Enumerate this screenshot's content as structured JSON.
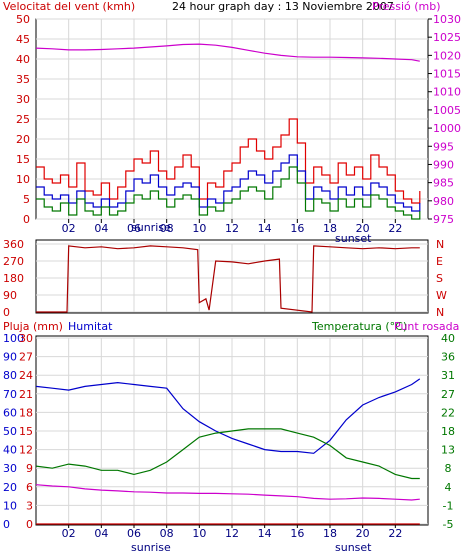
{
  "header": {
    "wind_title": "Velocitat del vent (kmh)",
    "main_title": "24 hour graph day : 13 Noviembre 2007",
    "pressure_title": "Pressió (mb)"
  },
  "bottom_header": {
    "rain_title": "Pluja (mm)",
    "humidity_title": "Humitat",
    "temp_title": "Temperatura (°C)",
    "dew_title": "Punt rosada"
  },
  "labels": {
    "sunrise": "sunrise",
    "sunset": "sunset"
  },
  "colors": {
    "wind_gust": "#e00000",
    "wind_avg": "#0000cc",
    "wind_sustained": "#007700",
    "pressure": "#cc00cc",
    "direction": "#aa0000",
    "humidity": "#0000cc",
    "temperature": "#007700",
    "dewpoint": "#cc00cc",
    "rain": "#cc0000",
    "axis_left": "#cc0000",
    "axis_right_top": "#cc00cc",
    "axis_right_bottom": "#007700"
  },
  "chart_data": [
    {
      "type": "line",
      "name": "wind-pressure",
      "xlim": [
        0,
        24
      ],
      "x_ticks": [
        "02",
        "04",
        "06",
        "08",
        "10",
        "12",
        "14",
        "16",
        "18",
        "20",
        "22"
      ],
      "x_tick_values": [
        2,
        4,
        6,
        8,
        10,
        12,
        14,
        16,
        18,
        20,
        22
      ],
      "y_left_ticks": [
        0,
        5,
        10,
        15,
        20,
        25,
        30,
        35,
        40,
        45,
        50
      ],
      "ylim_left": [
        0,
        50
      ],
      "y_right_ticks": [
        975,
        980,
        985,
        990,
        995,
        1000,
        1005,
        1010,
        1015,
        1020,
        1025,
        1030
      ],
      "ylim_right": [
        975,
        1030
      ],
      "series": [
        {
          "name": "Velocitat del vent (kmh)",
          "axis": "left",
          "color_key": "wind_gust",
          "x": [
            0,
            0.5,
            1,
            1.5,
            2,
            2.5,
            3,
            3.5,
            4,
            4.5,
            5,
            5.5,
            6,
            6.5,
            7,
            7.5,
            8,
            8.5,
            9,
            9.5,
            10,
            10.5,
            11,
            11.5,
            12,
            12.5,
            13,
            13.5,
            14,
            14.5,
            15,
            15.5,
            16,
            16.5,
            17,
            17.5,
            18,
            18.5,
            19,
            19.5,
            20,
            20.5,
            21,
            21.5,
            22,
            22.5,
            23,
            23.5
          ],
          "y": [
            13,
            10,
            9,
            11,
            8,
            14,
            7,
            6,
            9,
            5,
            8,
            12,
            15,
            14,
            17,
            12,
            10,
            13,
            16,
            13,
            5,
            9,
            8,
            12,
            14,
            18,
            20,
            17,
            15,
            18,
            21,
            25,
            19,
            9,
            13,
            11,
            9,
            14,
            11,
            13,
            10,
            16,
            13,
            11,
            7,
            5,
            4,
            7
          ]
        },
        {
          "name": "",
          "axis": "left",
          "color_key": "wind_avg",
          "x": [
            0,
            0.5,
            1,
            1.5,
            2,
            2.5,
            3,
            3.5,
            4,
            4.5,
            5,
            5.5,
            6,
            6.5,
            7,
            7.5,
            8,
            8.5,
            9,
            9.5,
            10,
            10.5,
            11,
            11.5,
            12,
            12.5,
            13,
            13.5,
            14,
            14.5,
            15,
            15.5,
            16,
            16.5,
            17,
            17.5,
            18,
            18.5,
            19,
            19.5,
            20,
            20.5,
            21,
            21.5,
            22,
            22.5,
            23,
            23.5
          ],
          "y": [
            8,
            6,
            5,
            6,
            4,
            7,
            4,
            3,
            5,
            3,
            4,
            7,
            10,
            9,
            11,
            8,
            6,
            8,
            9,
            8,
            3,
            5,
            4,
            7,
            8,
            10,
            12,
            11,
            9,
            12,
            14,
            16,
            12,
            5,
            8,
            7,
            5,
            8,
            6,
            8,
            6,
            9,
            8,
            6,
            4,
            3,
            2,
            4
          ]
        },
        {
          "name": "",
          "axis": "left",
          "color_key": "wind_sustained",
          "x": [
            0,
            0.5,
            1,
            1.5,
            2,
            2.5,
            3,
            3.5,
            4,
            4.5,
            5,
            5.5,
            6,
            6.5,
            7,
            7.5,
            8,
            8.5,
            9,
            9.5,
            10,
            10.5,
            11,
            11.5,
            12,
            12.5,
            13,
            13.5,
            14,
            14.5,
            15,
            15.5,
            16,
            16.5,
            17,
            17.5,
            18,
            18.5,
            19,
            19.5,
            20,
            20.5,
            21,
            21.5,
            22,
            22.5,
            23,
            23.5
          ],
          "y": [
            5,
            3,
            2,
            4,
            1,
            5,
            2,
            1,
            3,
            1,
            2,
            4,
            6,
            5,
            7,
            5,
            3,
            5,
            6,
            5,
            1,
            3,
            2,
            4,
            5,
            7,
            8,
            7,
            5,
            8,
            10,
            13,
            9,
            2,
            5,
            4,
            2,
            5,
            3,
            5,
            3,
            6,
            5,
            3,
            2,
            1,
            0,
            2
          ]
        },
        {
          "name": "Pressió (mb)",
          "axis": "right",
          "color_key": "pressure",
          "x": [
            0,
            1,
            2,
            3,
            4,
            5,
            6,
            7,
            8,
            9,
            10,
            11,
            12,
            13,
            14,
            15,
            16,
            17,
            18,
            19,
            20,
            21,
            22,
            23,
            23.5
          ],
          "y": [
            1022,
            1021.8,
            1021.5,
            1021.5,
            1021.6,
            1021.8,
            1022,
            1022.3,
            1022.6,
            1023,
            1023.1,
            1022.8,
            1022.2,
            1021.4,
            1020.6,
            1020,
            1019.6,
            1019.5,
            1019.5,
            1019.4,
            1019.3,
            1019.2,
            1019,
            1018.8,
            1018.4
          ]
        }
      ]
    },
    {
      "type": "line",
      "name": "wind-direction",
      "xlim": [
        0,
        24
      ],
      "y_left_ticks": [
        0,
        90,
        180,
        270,
        360
      ],
      "ylim_left": [
        0,
        360
      ],
      "y_right_ticks": [
        "N",
        "W",
        "S",
        "E",
        "N"
      ],
      "series": [
        {
          "name": "",
          "color_key": "direction",
          "x": [
            0,
            1.9,
            2,
            3,
            4,
            5,
            6,
            7,
            8,
            9,
            9.9,
            10,
            10.4,
            10.6,
            11,
            12,
            13,
            14,
            14.9,
            15,
            16.9,
            17,
            18,
            19,
            20,
            21,
            22,
            23,
            23.5
          ],
          "y": [
            0,
            0,
            350,
            340,
            345,
            335,
            340,
            350,
            345,
            340,
            330,
            50,
            70,
            10,
            270,
            265,
            255,
            270,
            280,
            20,
            0,
            350,
            345,
            340,
            335,
            340,
            335,
            340,
            340
          ]
        }
      ]
    },
    {
      "type": "line",
      "name": "humidity-temperature",
      "xlim": [
        0,
        24
      ],
      "x_ticks": [
        "02",
        "04",
        "06",
        "08",
        "10",
        "12",
        "14",
        "16",
        "18",
        "20",
        "22"
      ],
      "x_tick_values": [
        2,
        4,
        6,
        8,
        10,
        12,
        14,
        16,
        18,
        20,
        22
      ],
      "y_left_ticks": [
        0,
        10,
        20,
        30,
        40,
        50,
        60,
        70,
        80,
        90,
        100
      ],
      "ylim_left": [
        0,
        100
      ],
      "y_left_inner_ticks": [
        0,
        3,
        6,
        9,
        12,
        15,
        18,
        21,
        24,
        27,
        30
      ],
      "y_right_ticks": [
        -5,
        -1,
        4,
        8,
        13,
        18,
        22,
        27,
        31,
        36,
        40
      ],
      "ylim_right": [
        -5,
        40
      ],
      "series": [
        {
          "name": "Humitat",
          "axis": "left",
          "color_key": "humidity",
          "x": [
            0,
            1,
            2,
            3,
            4,
            5,
            6,
            7,
            8,
            9,
            10,
            11,
            12,
            13,
            14,
            15,
            16,
            17,
            18,
            19,
            20,
            21,
            22,
            23,
            23.5
          ],
          "y": [
            74,
            73,
            72,
            74,
            75,
            76,
            75,
            74,
            73,
            62,
            55,
            50,
            46,
            43,
            40,
            39,
            39,
            38,
            45,
            56,
            64,
            68,
            71,
            75,
            78
          ]
        },
        {
          "name": "Temperatura (°C)",
          "axis": "right",
          "color_key": "temperature",
          "x": [
            0,
            1,
            2,
            3,
            4,
            5,
            6,
            7,
            8,
            9,
            10,
            11,
            12,
            13,
            14,
            15,
            16,
            17,
            18,
            19,
            20,
            21,
            22,
            23,
            23.5
          ],
          "y": [
            9,
            8.5,
            9.5,
            9,
            8,
            8,
            7,
            8,
            10,
            13,
            16,
            17,
            17.5,
            18,
            18,
            18,
            17,
            16,
            14,
            11,
            10,
            9,
            7,
            6,
            6
          ]
        },
        {
          "name": "Punt rosada",
          "axis": "right",
          "color_key": "dewpoint",
          "x": [
            0,
            1,
            2,
            3,
            4,
            5,
            6,
            7,
            8,
            9,
            10,
            11,
            12,
            13,
            14,
            15,
            16,
            17,
            18,
            19,
            20,
            21,
            22,
            23,
            23.5
          ],
          "y": [
            4.5,
            4.2,
            4,
            3.5,
            3.2,
            3,
            2.8,
            2.7,
            2.5,
            2.5,
            2.4,
            2.4,
            2.3,
            2.2,
            2,
            1.8,
            1.6,
            1.2,
            1,
            1.1,
            1.3,
            1.2,
            1,
            0.8,
            1
          ]
        },
        {
          "name": "Pluja (mm)",
          "axis": "left",
          "color_key": "rain",
          "x": [
            0,
            23.5
          ],
          "y": [
            0,
            0
          ]
        }
      ]
    }
  ]
}
